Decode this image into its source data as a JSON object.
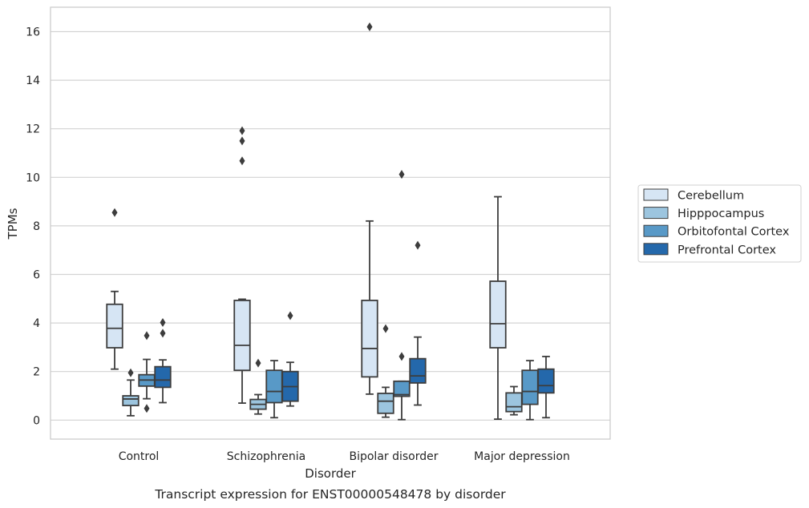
{
  "caption": "Transcript expression for ENST00000548478 by disorder",
  "chart_data": {
    "type": "box",
    "title": "",
    "xlabel": "Disorder",
    "ylabel": "TPMs",
    "ylim": [
      -0.8,
      17
    ],
    "yticks": [
      0,
      2,
      4,
      6,
      8,
      10,
      12,
      14,
      16
    ],
    "grid": "horizontal",
    "legend_position": "right",
    "categories": [
      "Control",
      "Schizophrenia",
      "Bipolar disorder",
      "Major depression"
    ],
    "series": [
      {
        "name": "Cerebellum",
        "color": "#d6e5f4",
        "boxes": [
          {
            "whislo": 2.1,
            "q1": 2.98,
            "med": 3.78,
            "q3": 4.77,
            "whishi": 5.3,
            "fliers": [
              8.55
            ]
          },
          {
            "whislo": 0.7,
            "q1": 2.05,
            "med": 3.08,
            "q3": 4.93,
            "whishi": 4.98,
            "fliers": [
              10.68,
              11.5,
              11.92
            ]
          },
          {
            "whislo": 1.07,
            "q1": 1.78,
            "med": 2.95,
            "q3": 4.93,
            "whishi": 8.2,
            "fliers": [
              16.2
            ]
          },
          {
            "whislo": 0.04,
            "q1": 2.98,
            "med": 3.97,
            "q3": 5.72,
            "whishi": 9.2,
            "fliers": []
          }
        ]
      },
      {
        "name": "Hipppocampus",
        "color": "#9cc5df",
        "boxes": [
          {
            "whislo": 0.18,
            "q1": 0.6,
            "med": 0.87,
            "q3": 1.0,
            "whishi": 1.65,
            "fliers": [
              1.95
            ]
          },
          {
            "whislo": 0.25,
            "q1": 0.45,
            "med": 0.65,
            "q3": 0.85,
            "whishi": 1.05,
            "fliers": [
              2.35
            ]
          },
          {
            "whislo": 0.12,
            "q1": 0.28,
            "med": 0.78,
            "q3": 1.1,
            "whishi": 1.35,
            "fliers": [
              3.77
            ]
          },
          {
            "whislo": 0.22,
            "q1": 0.35,
            "med": 0.55,
            "q3": 1.12,
            "whishi": 1.38,
            "fliers": []
          }
        ]
      },
      {
        "name": "Orbitofontal Cortex",
        "color": "#5899c7",
        "boxes": [
          {
            "whislo": 0.88,
            "q1": 1.4,
            "med": 1.65,
            "q3": 1.87,
            "whishi": 2.5,
            "fliers": [
              0.48,
              3.48
            ]
          },
          {
            "whislo": 0.1,
            "q1": 0.72,
            "med": 1.18,
            "q3": 2.05,
            "whishi": 2.45,
            "fliers": []
          },
          {
            "whislo": 0.02,
            "q1": 0.98,
            "med": 1.05,
            "q3": 1.6,
            "whishi": 1.6,
            "fliers": [
              2.62,
              10.12
            ]
          },
          {
            "whislo": 0.02,
            "q1": 0.65,
            "med": 1.18,
            "q3": 2.05,
            "whishi": 2.45,
            "fliers": []
          }
        ]
      },
      {
        "name": "Prefrontal Cortex",
        "color": "#2468ab",
        "boxes": [
          {
            "whislo": 0.72,
            "q1": 1.35,
            "med": 1.65,
            "q3": 2.2,
            "whishi": 2.48,
            "fliers": [
              3.58,
              4.02
            ]
          },
          {
            "whislo": 0.58,
            "q1": 0.78,
            "med": 1.38,
            "q3": 2.0,
            "whishi": 2.38,
            "fliers": [
              4.3
            ]
          },
          {
            "whislo": 0.62,
            "q1": 1.53,
            "med": 1.82,
            "q3": 2.53,
            "whishi": 3.42,
            "fliers": [
              7.2
            ]
          },
          {
            "whislo": 0.1,
            "q1": 1.12,
            "med": 1.42,
            "q3": 2.1,
            "whishi": 2.62,
            "fliers": []
          }
        ]
      }
    ]
  }
}
